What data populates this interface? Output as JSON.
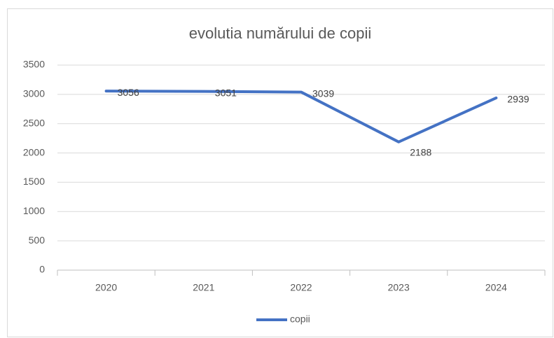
{
  "chart_data": {
    "type": "line",
    "title": "evolutia numărului de copii",
    "categories": [
      "2020",
      "2021",
      "2022",
      "2023",
      "2024"
    ],
    "series": [
      {
        "name": "copii",
        "color": "#4472c4",
        "values": [
          3056,
          3051,
          3039,
          2188,
          2939
        ]
      }
    ],
    "ylim": [
      0,
      3500
    ],
    "yticks": [
      0,
      500,
      1000,
      1500,
      2000,
      2500,
      3000,
      3500
    ],
    "grid": true,
    "legend": "bottom"
  }
}
